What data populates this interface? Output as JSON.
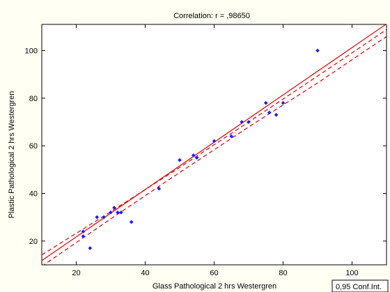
{
  "colors": {
    "background": "#fffff4",
    "plot_background": "#ffffff",
    "points": "#1a1aff",
    "fit_line": "#e00000"
  },
  "chart_data": {
    "type": "scatter",
    "title": "Correlation: r = ,98650",
    "xlabel": "Glass Pathological 2 hrs Westergren",
    "ylabel": "Plastic Pathological 2 hrs Westergren",
    "xlim": [
      10,
      110
    ],
    "ylim": [
      10,
      111
    ],
    "xticks": [
      20,
      40,
      60,
      80,
      100
    ],
    "yticks": [
      20,
      40,
      60,
      80,
      100
    ],
    "grid": false,
    "legend": "0,95 Conf.Int.",
    "legend_position": "bottom-right",
    "points": [
      {
        "x": 22,
        "y": 22
      },
      {
        "x": 22,
        "y": 24
      },
      {
        "x": 24,
        "y": 17
      },
      {
        "x": 26,
        "y": 30
      },
      {
        "x": 28,
        "y": 30
      },
      {
        "x": 30,
        "y": 32
      },
      {
        "x": 31,
        "y": 34
      },
      {
        "x": 32,
        "y": 32
      },
      {
        "x": 33,
        "y": 32
      },
      {
        "x": 36,
        "y": 28
      },
      {
        "x": 44,
        "y": 42
      },
      {
        "x": 50,
        "y": 54
      },
      {
        "x": 54,
        "y": 56
      },
      {
        "x": 55,
        "y": 55
      },
      {
        "x": 60,
        "y": 62
      },
      {
        "x": 65,
        "y": 64
      },
      {
        "x": 68,
        "y": 70
      },
      {
        "x": 70,
        "y": 70
      },
      {
        "x": 75,
        "y": 78
      },
      {
        "x": 76,
        "y": 74
      },
      {
        "x": 78,
        "y": 73
      },
      {
        "x": 80,
        "y": 78
      },
      {
        "x": 90,
        "y": 100
      }
    ],
    "fit": {
      "type": "line",
      "x": [
        10,
        110
      ],
      "y": [
        11.8,
        111.2
      ]
    },
    "conf_upper": {
      "x": [
        10,
        30,
        50,
        70,
        90,
        110
      ],
      "y": [
        14.2,
        32.3,
        50.9,
        70.0,
        89.3,
        108.8
      ]
    },
    "conf_lower": {
      "x": [
        10,
        30,
        50,
        70,
        90,
        110
      ],
      "y": [
        9.4,
        29.3,
        48.8,
        67.9,
        86.4,
        105.9
      ]
    }
  }
}
